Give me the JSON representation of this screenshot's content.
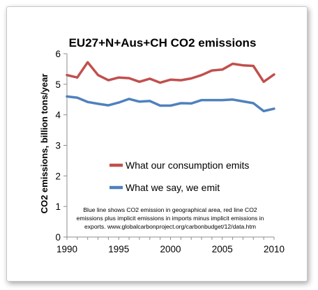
{
  "chart_data": {
    "type": "line",
    "title": "EU27+N+Aus+CH CO2 emissions",
    "ylabel": "CO2 emissions, billion tons/year",
    "xlabel": "",
    "xlim": [
      1990,
      2010
    ],
    "ylim": [
      0,
      6
    ],
    "x_ticks": [
      "1990",
      "1995",
      "2000",
      "2005",
      "2010"
    ],
    "y_ticks": [
      "0",
      "1",
      "2",
      "3",
      "4",
      "5",
      "6"
    ],
    "grid": false,
    "legend_position": "center-right",
    "x": [
      1990,
      1991,
      1992,
      1993,
      1994,
      1995,
      1996,
      1997,
      1998,
      1999,
      2000,
      2001,
      2002,
      2003,
      2004,
      2005,
      2006,
      2007,
      2008,
      2009,
      2010
    ],
    "series": [
      {
        "name": "What our consumption emits",
        "color": "#c0504d",
        "values": [
          5.3,
          5.22,
          5.72,
          5.3,
          5.13,
          5.22,
          5.2,
          5.08,
          5.18,
          5.05,
          5.15,
          5.13,
          5.19,
          5.3,
          5.45,
          5.48,
          5.67,
          5.62,
          5.6,
          5.08,
          5.32
        ]
      },
      {
        "name": "What we say, we emit",
        "color": "#4f81bd",
        "values": [
          4.6,
          4.56,
          4.42,
          4.36,
          4.31,
          4.4,
          4.52,
          4.43,
          4.45,
          4.3,
          4.3,
          4.38,
          4.37,
          4.48,
          4.48,
          4.48,
          4.5,
          4.44,
          4.38,
          4.12,
          4.2
        ]
      }
    ],
    "annotation": [
      "Blue line shows CO2 emission in geographical area, red line CO2",
      "emissions plus implicit emissions in imports minus implicit emissions in",
      "exports. www.globalcarbonproject.org/carbonbudget/12/data.htm"
    ]
  }
}
